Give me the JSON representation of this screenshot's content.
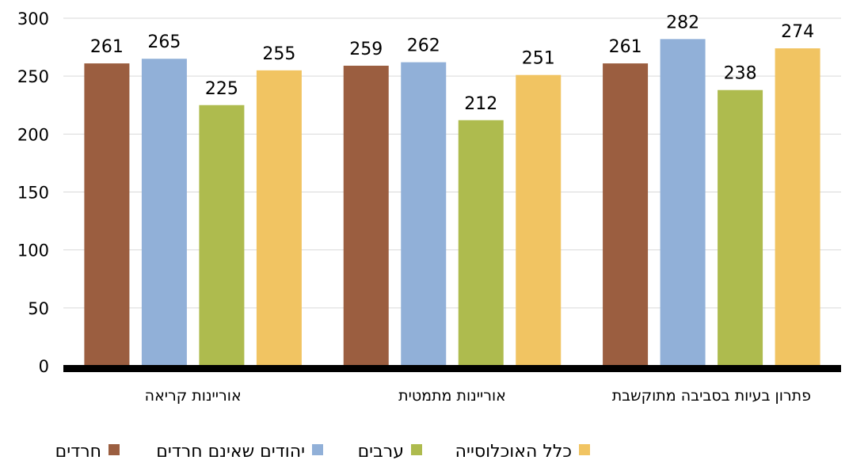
{
  "chart_data": {
    "type": "bar",
    "categories": [
      "אוריינות קריאה",
      "אוריינות מתמטית",
      "פתרון בעיות בסביבה מתוקשבת"
    ],
    "series": [
      {
        "name": "חרדים",
        "color": "#9B5E40",
        "values": [
          261,
          259,
          261
        ]
      },
      {
        "name": "יהודים שאינם חרדים",
        "color": "#91B0D8",
        "values": [
          265,
          262,
          282
        ]
      },
      {
        "name": "ערבים",
        "color": "#AEBB4E",
        "values": [
          225,
          212,
          238
        ]
      },
      {
        "name": "כלל האוכלוסייה",
        "color": "#F1C462",
        "values": [
          255,
          251,
          274
        ]
      }
    ],
    "yticks": [
      "0",
      "50",
      "100",
      "150",
      "200",
      "250",
      "300"
    ],
    "ylim": [
      0,
      300
    ],
    "grid": true,
    "legend_position": "bottom",
    "axis_color": "#000000",
    "grid_color": "#D9D9D9"
  }
}
